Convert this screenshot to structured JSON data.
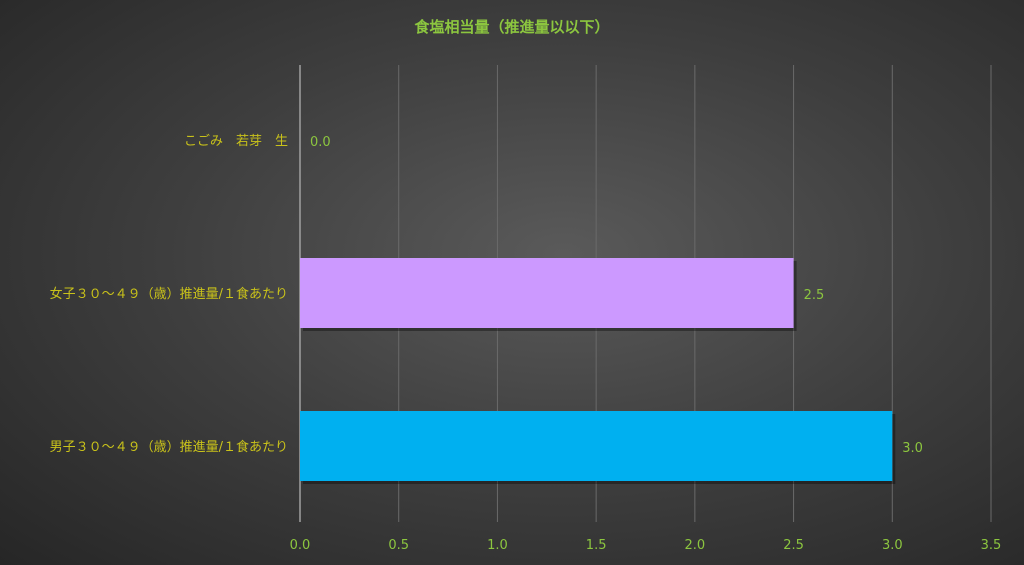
{
  "chart_data": {
    "type": "bar",
    "orientation": "horizontal",
    "title": "食塩相当量（推進量以以下）",
    "categories": [
      "こごみ　若芽　生",
      "女子３０～４９（歳）推進量/１食あたり",
      "男子３０～４９（歳）推進量/１食あたり"
    ],
    "values": [
      0.0,
      2.5,
      3.0
    ],
    "data_labels": [
      "0.0",
      "2.5",
      "3.0"
    ],
    "bar_colors": [
      "#cc99ff",
      "#cc99ff",
      "#00b0f0"
    ],
    "xlim": [
      0,
      3.5
    ],
    "xticks": [
      "0.0",
      "0.5",
      "1.0",
      "1.5",
      "2.0",
      "2.5",
      "3.0",
      "3.5"
    ],
    "grid": true,
    "xlabel": "",
    "ylabel": ""
  }
}
